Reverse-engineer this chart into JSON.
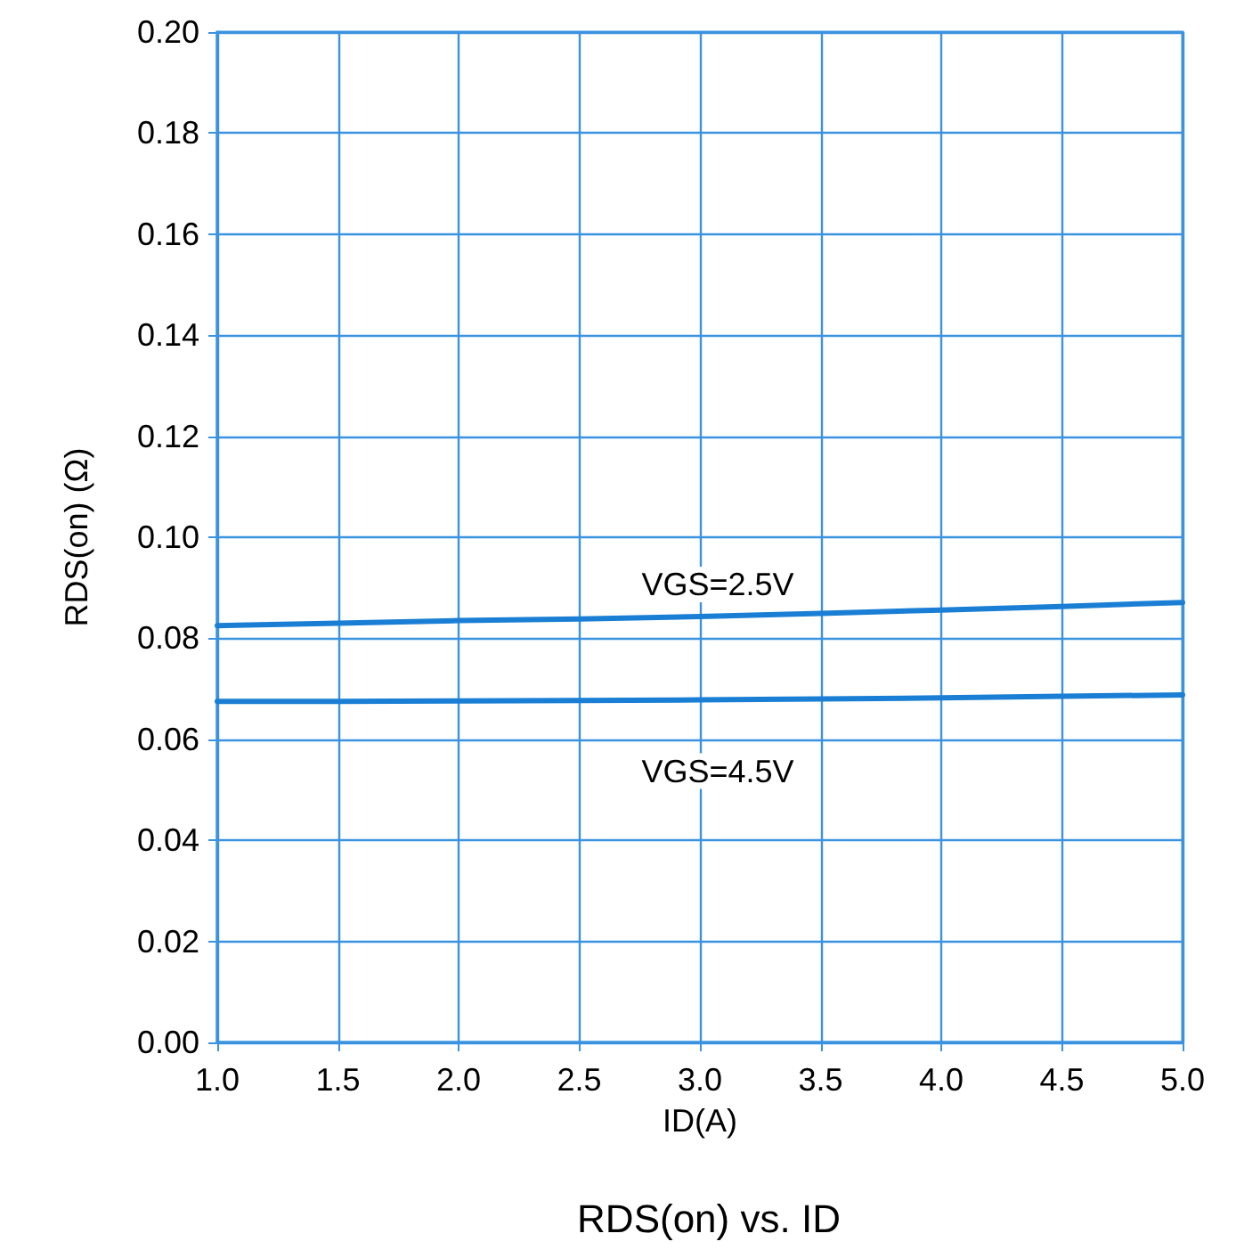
{
  "chart_data": {
    "type": "line",
    "title": "RDS(on) vs. ID",
    "xlabel": "ID(A)",
    "ylabel": "RDS(on) (Ω)",
    "x": [
      1.0,
      1.5,
      2.0,
      2.5,
      3.0,
      3.5,
      4.0,
      4.5,
      5.0
    ],
    "series": [
      {
        "name": "VGS=2.5V",
        "color": "#1a7fd4",
        "values": [
          0.0825,
          0.083,
          0.0835,
          0.0838,
          0.0843,
          0.0849,
          0.0856,
          0.0863,
          0.0871
        ]
      },
      {
        "name": "VGS=4.5V",
        "color": "#1a7fd4",
        "values": [
          0.0675,
          0.0675,
          0.0676,
          0.0677,
          0.0678,
          0.068,
          0.0682,
          0.0685,
          0.0688
        ]
      }
    ],
    "xlim": [
      1.0,
      5.0
    ],
    "xticks": [
      {
        "value": 1,
        "label": "1.0"
      },
      1.5,
      {
        "value": 2,
        "label": "2.0"
      },
      2.5,
      {
        "value": 3,
        "label": "3.0"
      },
      3.5,
      {
        "value": 4,
        "label": "4.0"
      },
      4.5,
      {
        "value": 5,
        "label": "5.0"
      }
    ],
    "ylim": [
      0,
      0.2
    ],
    "yticks": [
      {
        "value": 0,
        "label": "0.00"
      },
      {
        "value": 0.02,
        "label": "0.02"
      },
      {
        "value": 0.04,
        "label": "0.04"
      },
      {
        "value": 0.06,
        "label": "0.06"
      },
      {
        "value": 0.08,
        "label": "0.08"
      },
      {
        "value": 0.1,
        "label": "0.10"
      },
      {
        "value": 0.12,
        "label": "0.12"
      },
      {
        "value": 0.14,
        "label": "0.14"
      },
      {
        "value": 0.16,
        "label": "0.16"
      },
      {
        "value": 0.18,
        "label": "0.18"
      },
      {
        "value": 0.2,
        "label": "0.20"
      }
    ],
    "grid": true,
    "line_style": "solid"
  }
}
